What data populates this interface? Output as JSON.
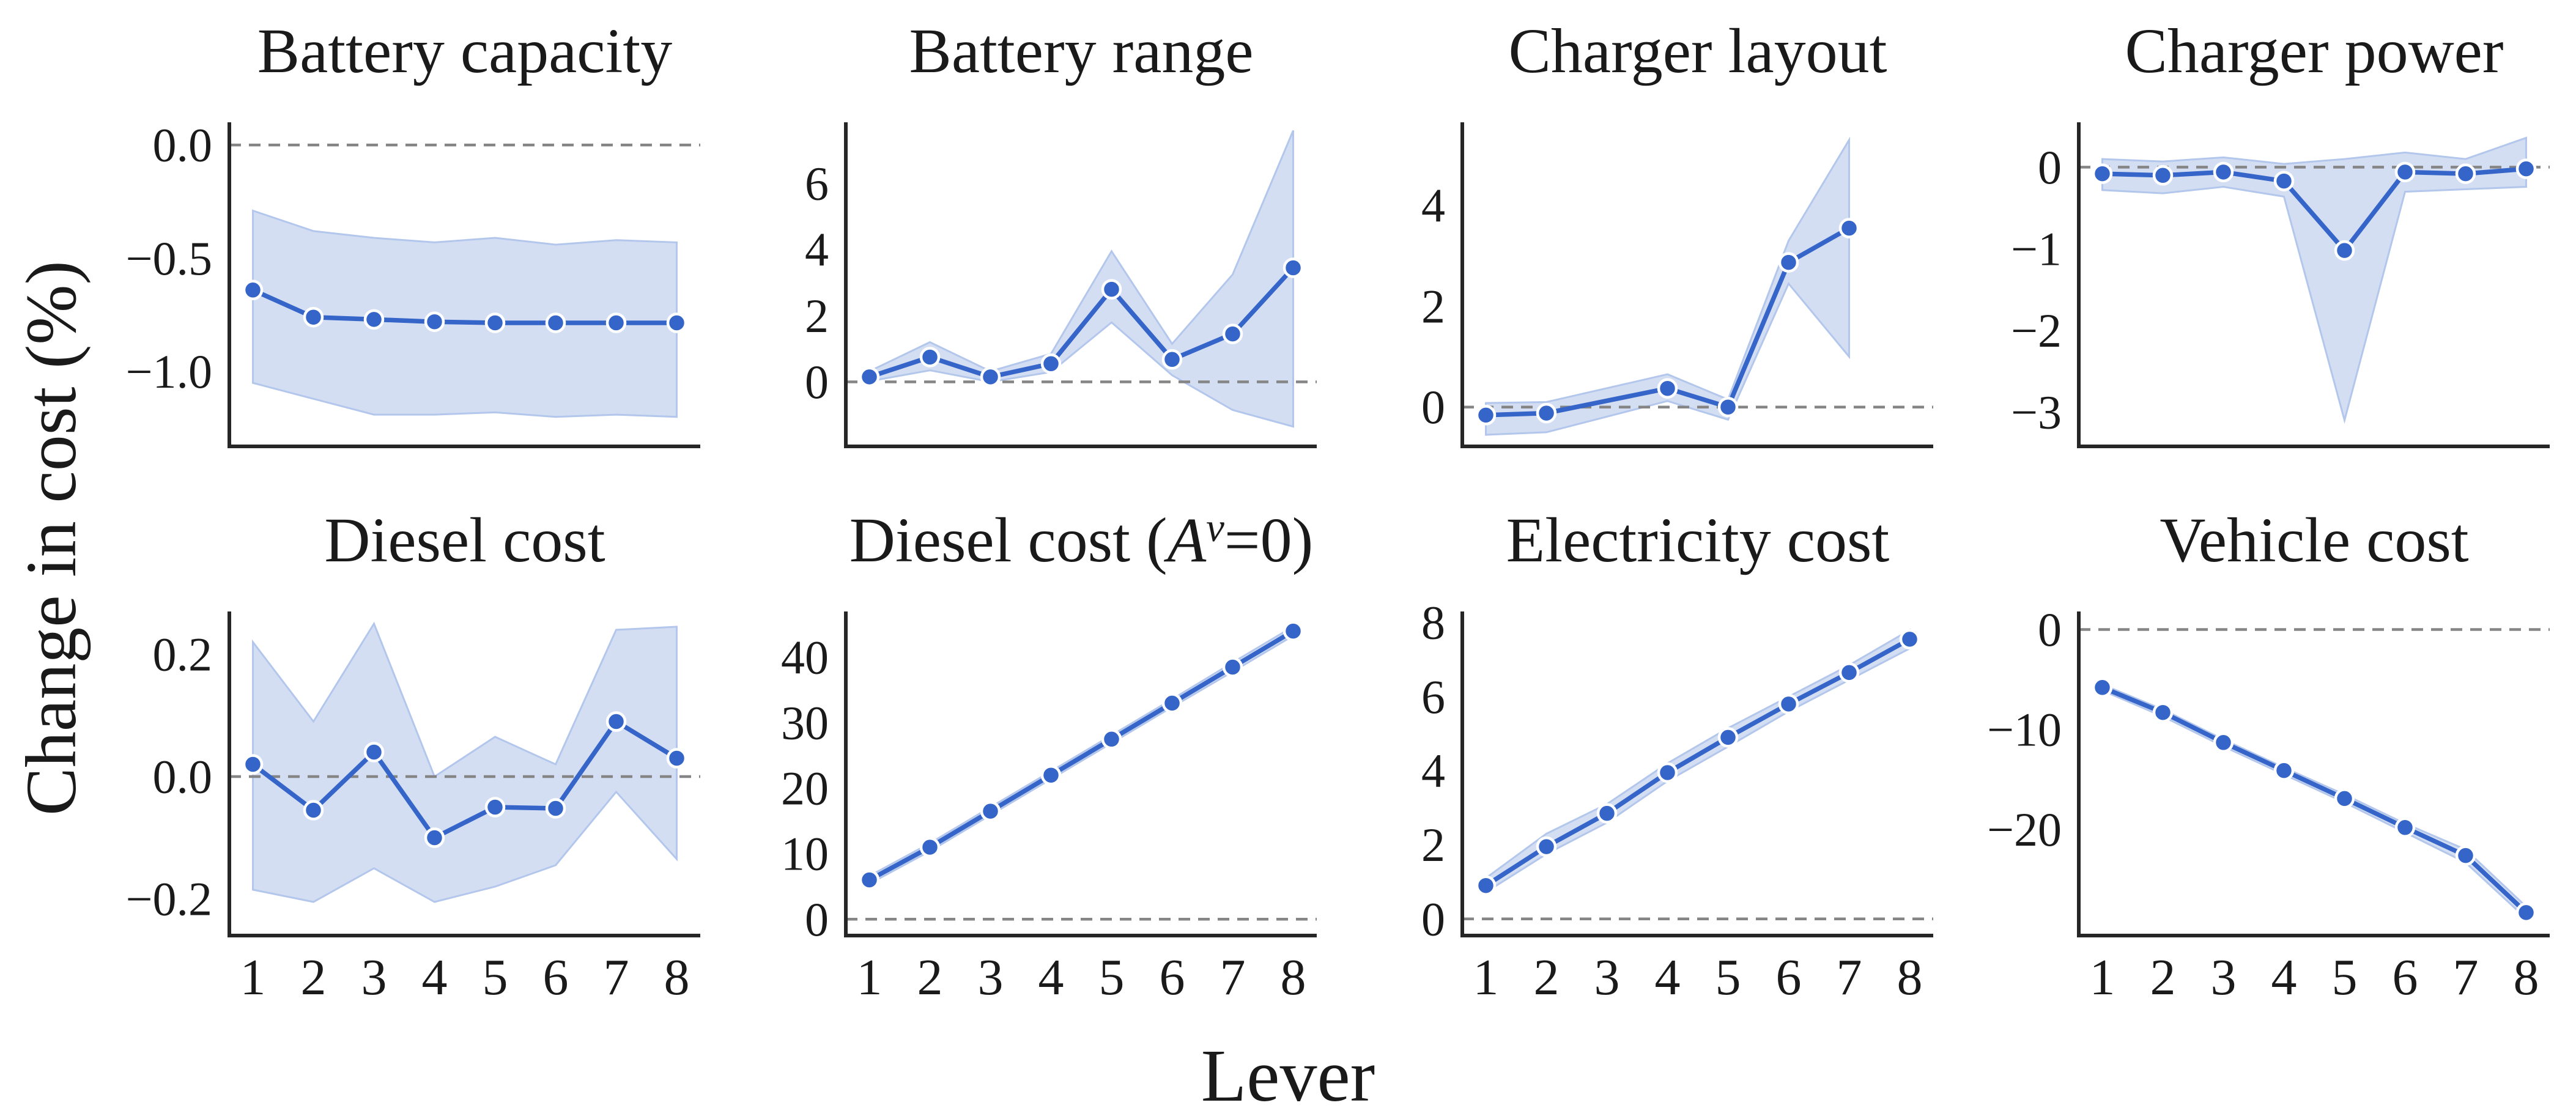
{
  "figure": {
    "ylabel": "Change in cost (%)",
    "xlabel": "Lever",
    "x_tick_labels": [
      "1",
      "2",
      "3",
      "4",
      "5",
      "6",
      "7",
      "8"
    ],
    "colors": {
      "line": "#3565c8",
      "marker_edge": "#ffffff",
      "band_fill": "#cfdaf2",
      "band_edge": "#b3c6ec",
      "zero_line": "#858585",
      "spine": "#262626",
      "text": "#1a1a1a"
    }
  },
  "chart_data": [
    {
      "type": "line",
      "title": "Battery capacity",
      "x": [
        1,
        2,
        3,
        4,
        5,
        6,
        7,
        8
      ],
      "y": [
        -0.64,
        -0.76,
        -0.77,
        -0.78,
        -0.785,
        -0.785,
        -0.785,
        -0.785
      ],
      "band_upper": [
        -0.29,
        -0.38,
        -0.41,
        -0.43,
        -0.41,
        -0.44,
        -0.42,
        -0.43
      ],
      "band_lower": [
        -1.05,
        -1.12,
        -1.19,
        -1.19,
        -1.18,
        -1.2,
        -1.19,
        -1.2
      ],
      "ytick_values": [
        0,
        -0.5,
        -1
      ],
      "ytick_labels": [
        "0.0",
        "−0.5",
        "−1.0"
      ],
      "ylim": [
        -1.33,
        0.1
      ],
      "zero_line": 0
    },
    {
      "type": "line",
      "title": "Battery range",
      "x": [
        1,
        2,
        3,
        4,
        5,
        6,
        7,
        8
      ],
      "y": [
        0.15,
        0.75,
        0.15,
        0.55,
        2.8,
        0.68,
        1.45,
        3.45
      ],
      "band_upper": [
        0.32,
        1.2,
        0.32,
        0.85,
        3.95,
        1.15,
        3.25,
        7.6
      ],
      "band_lower": [
        0.02,
        0.35,
        0.0,
        0.3,
        1.8,
        0.2,
        -0.85,
        -1.35
      ],
      "ytick_values": [
        6,
        4,
        2,
        0
      ],
      "ytick_labels": [
        "6",
        "4",
        "2",
        "0"
      ],
      "ylim": [
        -1.95,
        7.85
      ],
      "zero_line": 0
    },
    {
      "type": "line",
      "title": "Charger layout",
      "x": [
        1,
        2,
        4,
        5,
        6,
        7
      ],
      "y": [
        -0.16,
        -0.12,
        0.37,
        0.0,
        2.87,
        3.55
      ],
      "band_upper": [
        0.08,
        0.1,
        0.65,
        0.15,
        3.3,
        5.3
      ],
      "band_lower": [
        -0.55,
        -0.5,
        0.12,
        -0.25,
        2.45,
        1.0
      ],
      "ytick_values": [
        4,
        2,
        0
      ],
      "ytick_labels": [
        "4",
        "2",
        "0"
      ],
      "ylim": [
        -0.78,
        5.65
      ],
      "zero_line": 0
    },
    {
      "type": "line",
      "title": "Charger power",
      "x": [
        1,
        2,
        3,
        4,
        5,
        6,
        7,
        8
      ],
      "y": [
        -0.08,
        -0.1,
        -0.06,
        -0.17,
        -1.02,
        -0.06,
        -0.08,
        -0.02
      ],
      "band_upper": [
        0.1,
        0.07,
        0.12,
        0.04,
        0.1,
        0.18,
        0.1,
        0.36
      ],
      "band_lower": [
        -0.28,
        -0.32,
        -0.24,
        -0.36,
        -3.1,
        -0.3,
        -0.27,
        -0.24
      ],
      "ytick_values": [
        0,
        -1,
        -2,
        -3
      ],
      "ytick_labels": [
        "0",
        "−1",
        "−2",
        "−3"
      ],
      "ylim": [
        -3.42,
        0.55
      ],
      "zero_line": 0
    },
    {
      "type": "line",
      "title": "Diesel cost",
      "x": [
        1,
        2,
        3,
        4,
        5,
        6,
        7,
        8
      ],
      "y": [
        0.02,
        -0.055,
        0.04,
        -0.1,
        -0.05,
        -0.052,
        0.09,
        0.03
      ],
      "band_upper": [
        0.22,
        0.09,
        0.25,
        0.0,
        0.065,
        0.02,
        0.24,
        0.245
      ],
      "band_lower": [
        -0.185,
        -0.205,
        -0.15,
        -0.205,
        -0.18,
        -0.145,
        -0.025,
        -0.135
      ],
      "ytick_values": [
        0.2,
        0,
        -0.2
      ],
      "ytick_labels": [
        "0.2",
        "0.0",
        "−0.2"
      ],
      "ylim": [
        -0.26,
        0.27
      ],
      "zero_line": 0
    },
    {
      "type": "line",
      "title": "Diesel cost (*A*^ν^=0)",
      "x": [
        1,
        2,
        3,
        4,
        5,
        6,
        7,
        8
      ],
      "y": [
        6,
        11,
        16.5,
        22,
        27.5,
        33,
        38.5,
        44
      ],
      "band_upper": [
        6.6,
        11.6,
        17.1,
        22.6,
        28.1,
        33.6,
        39.2,
        44.7
      ],
      "band_lower": [
        5.4,
        10.4,
        15.9,
        21.4,
        26.9,
        32.4,
        37.8,
        43.3
      ],
      "ytick_values": [
        40,
        30,
        20,
        10,
        0
      ],
      "ytick_labels": [
        "40",
        "30",
        "20",
        "10",
        "0"
      ],
      "ylim": [
        -2.5,
        47
      ],
      "zero_line": 0
    },
    {
      "type": "line",
      "title": "Electricity cost",
      "x": [
        1,
        2,
        3,
        4,
        5,
        6,
        7,
        8
      ],
      "y": [
        0.9,
        1.95,
        2.85,
        3.95,
        4.9,
        5.8,
        6.65,
        7.55
      ],
      "band_upper": [
        1.1,
        2.3,
        3.1,
        4.2,
        5.15,
        6.0,
        6.85,
        7.8
      ],
      "band_lower": [
        0.72,
        1.75,
        2.6,
        3.72,
        4.65,
        5.6,
        6.45,
        7.3
      ],
      "ytick_values": [
        8,
        6,
        4,
        2,
        0
      ],
      "ytick_labels": [
        "8",
        "6",
        "4",
        "2",
        "0"
      ],
      "ylim": [
        -0.45,
        8.3
      ],
      "zero_line": 0
    },
    {
      "type": "line",
      "title": "Vehicle cost",
      "x": [
        1,
        2,
        3,
        4,
        5,
        6,
        7,
        8
      ],
      "y": [
        -5.8,
        -8.3,
        -11.3,
        -14.1,
        -16.9,
        -19.8,
        -22.6,
        -28.3
      ],
      "band_upper": [
        -5.5,
        -8.0,
        -11.0,
        -13.8,
        -16.5,
        -19.4,
        -22.0,
        -27.7
      ],
      "band_lower": [
        -6.1,
        -8.7,
        -11.7,
        -14.5,
        -17.3,
        -20.3,
        -23.3,
        -28.9
      ],
      "ytick_values": [
        0,
        -10,
        -20
      ],
      "ytick_labels": [
        "0",
        "−10",
        "−20"
      ],
      "ylim": [
        -30.6,
        1.8
      ],
      "zero_line": 0
    }
  ]
}
